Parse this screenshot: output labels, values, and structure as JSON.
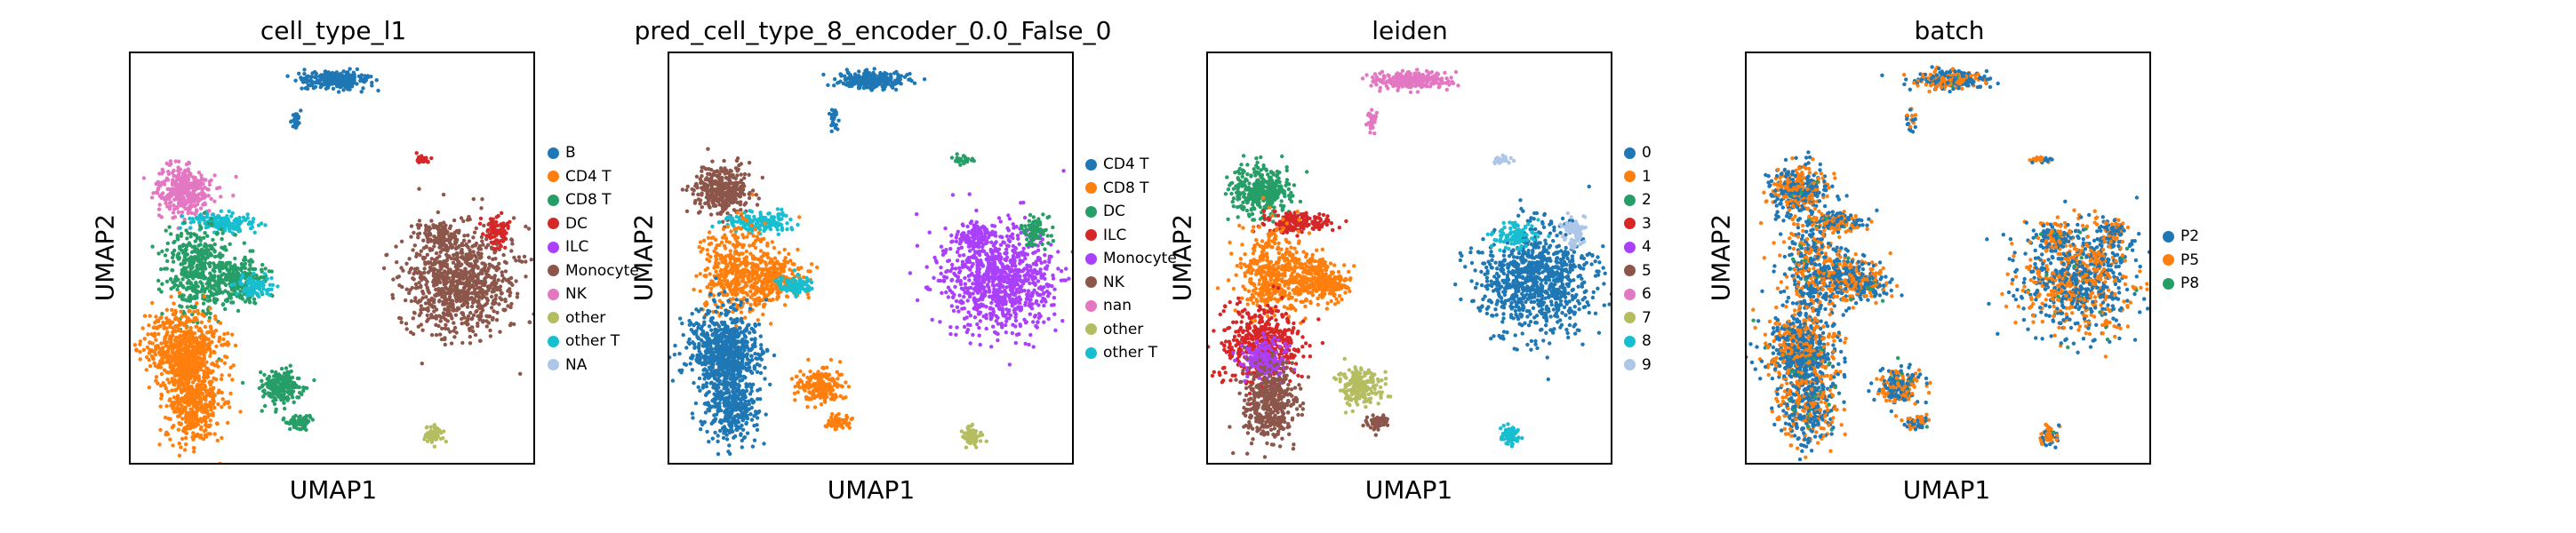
{
  "chart_data": [
    {
      "type": "scatter",
      "title": "cell_type_l1",
      "xlabel": "UMAP1",
      "ylabel": "UMAP2",
      "legend_placement": "right",
      "categories": [
        {
          "name": "B",
          "color": "#1f77b4"
        },
        {
          "name": "CD4 T",
          "color": "#ff7f0e"
        },
        {
          "name": "CD8 T",
          "color": "#279e68"
        },
        {
          "name": "DC",
          "color": "#d62728"
        },
        {
          "name": "ILC",
          "color": "#aa40fc"
        },
        {
          "name": "Monocyte",
          "color": "#8c564b"
        },
        {
          "name": "NK",
          "color": "#e377c2"
        },
        {
          "name": "other",
          "color": "#b5bd61"
        },
        {
          "name": "other T",
          "color": "#17becf"
        },
        {
          "name": "NA",
          "color": "#aec7e8"
        }
      ],
      "cluster_colors": {
        "top_island": "B",
        "top_specks": "B",
        "small_red": "DC",
        "left_pink": "NK",
        "left_cyan": "other T",
        "left_green": "CD8 T",
        "left_mix": "CD8 T",
        "left_cyan2": "other T",
        "orange_mass": "CD4 T",
        "blue_core": "CD4 T",
        "bottom_blob": "CD4 T",
        "green_small": "CD8 T",
        "green_small2": "CD8 T",
        "yellow": "other",
        "right_big": "Monocyte",
        "right_nub": "DC",
        "right_cyan": "Monocyte"
      }
    },
    {
      "type": "scatter",
      "title": "pred_cell_type_8_encoder_0.0_False_0",
      "xlabel": "UMAP1",
      "ylabel": "UMAP2",
      "legend_placement": "right",
      "categories": [
        {
          "name": "CD4 T",
          "color": "#1f77b4"
        },
        {
          "name": "CD8 T",
          "color": "#ff7f0e"
        },
        {
          "name": "DC",
          "color": "#279e68"
        },
        {
          "name": "ILC",
          "color": "#d62728"
        },
        {
          "name": "Monocyte",
          "color": "#aa40fc"
        },
        {
          "name": "NK",
          "color": "#8c564b"
        },
        {
          "name": "nan",
          "color": "#e377c2"
        },
        {
          "name": "other",
          "color": "#b5bd61"
        },
        {
          "name": "other T",
          "color": "#17becf"
        }
      ],
      "cluster_colors": {
        "top_island": "CD4 T",
        "top_specks": "CD4 T",
        "small_red": "DC",
        "left_pink": "NK",
        "left_cyan": "other T",
        "left_green": "CD8 T",
        "left_mix": "CD8 T",
        "left_cyan2": "other T",
        "orange_mass": "CD4 T",
        "blue_core": "CD4 T",
        "bottom_blob": "CD4 T",
        "green_small": "CD8 T",
        "green_small2": "CD8 T",
        "yellow": "other",
        "right_big": "Monocyte",
        "right_nub": "DC",
        "right_cyan": "Monocyte"
      }
    },
    {
      "type": "scatter",
      "title": "leiden",
      "xlabel": "UMAP1",
      "ylabel": "UMAP2",
      "legend_placement": "right",
      "categories": [
        {
          "name": "0",
          "color": "#1f77b4"
        },
        {
          "name": "1",
          "color": "#ff7f0e"
        },
        {
          "name": "2",
          "color": "#279e68"
        },
        {
          "name": "3",
          "color": "#d62728"
        },
        {
          "name": "4",
          "color": "#aa40fc"
        },
        {
          "name": "5",
          "color": "#8c564b"
        },
        {
          "name": "6",
          "color": "#e377c2"
        },
        {
          "name": "7",
          "color": "#b5bd61"
        },
        {
          "name": "8",
          "color": "#17becf"
        },
        {
          "name": "9",
          "color": "#aec7e8"
        }
      ],
      "cluster_colors": {
        "top_island": "6",
        "top_specks": "6",
        "small_red": "9",
        "left_pink": "2",
        "left_cyan": "3",
        "left_green": "1",
        "left_mix": "1",
        "left_cyan2": "1",
        "orange_mass": "3",
        "blue_core": "4",
        "bottom_blob": "5",
        "green_small": "7",
        "green_small2": "5",
        "yellow": "8",
        "right_big": "0",
        "right_nub": "9",
        "right_cyan": "8"
      }
    },
    {
      "type": "scatter",
      "title": "batch",
      "xlabel": "UMAP1",
      "ylabel": "UMAP2",
      "legend_placement": "right",
      "categories": [
        {
          "name": "P2",
          "color": "#1f77b4"
        },
        {
          "name": "P5",
          "color": "#ff7f0e"
        },
        {
          "name": "P8",
          "color": "#279e68"
        }
      ],
      "cluster_colors": "mixed"
    }
  ]
}
